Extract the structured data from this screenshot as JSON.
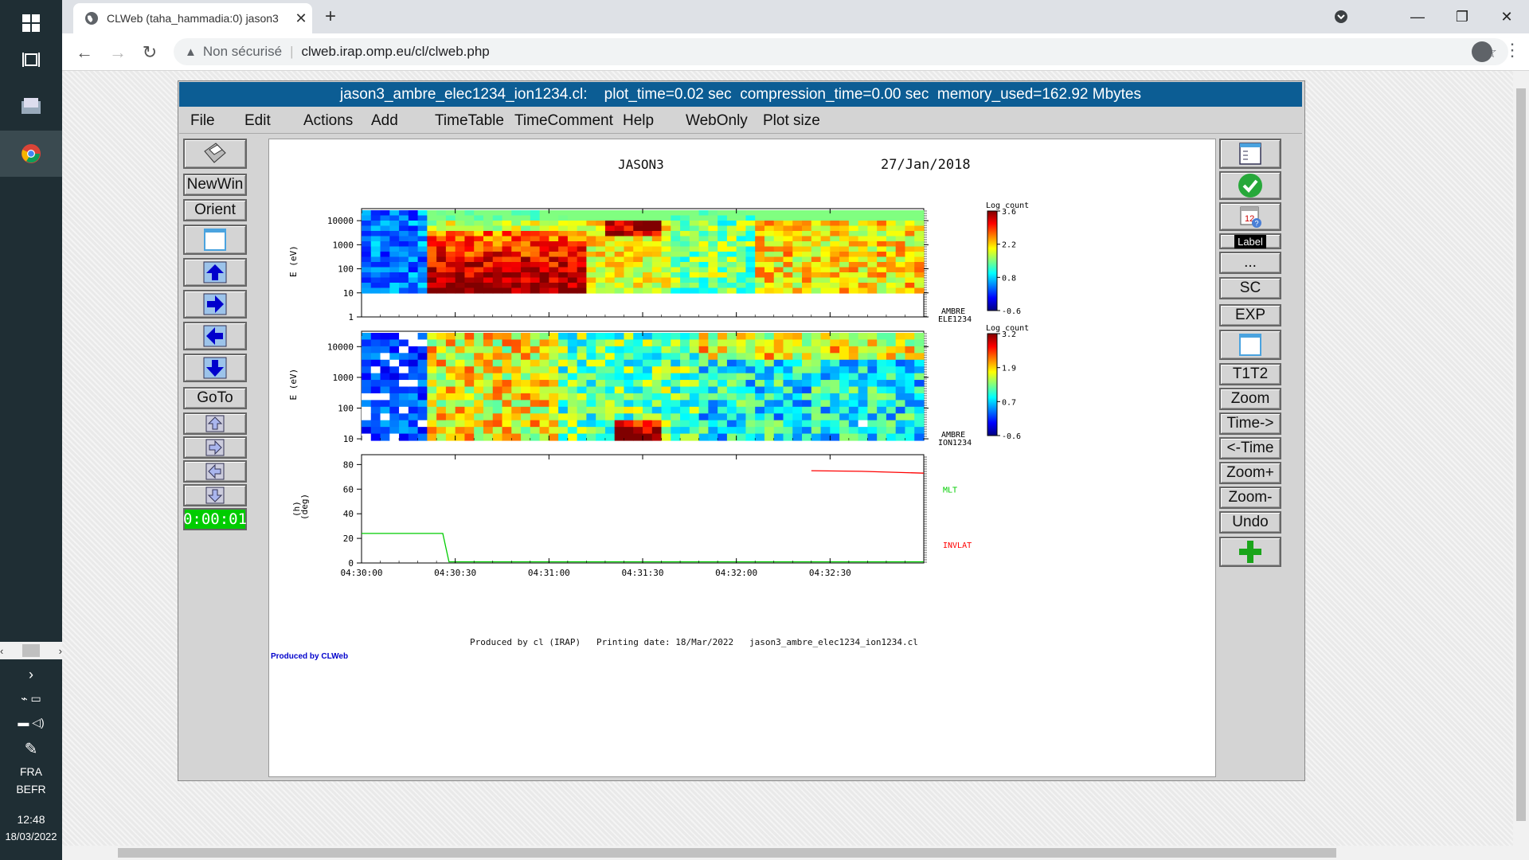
{
  "taskbar": {
    "lang1": "FRA",
    "lang2": "BEFR",
    "time": "12:48",
    "date": "18/03/2022"
  },
  "browser": {
    "tab_title": "CLWeb (taha_hammadia:0) jason3",
    "insecure_label": "Non sécurisé",
    "url": "clweb.irap.omp.eu/cl/clweb.php"
  },
  "app": {
    "title": "jason3_ambre_elec1234_ion1234.cl:    plot_time=0.02 sec  compression_time=0.00 sec  memory_used=162.92 Mbytes",
    "menu": [
      "File",
      "Edit",
      "Actions",
      "Add",
      "TimeTable",
      "TimeComment",
      "Help",
      "WebOnly",
      "Plot size"
    ],
    "left_buttons": {
      "newwin": "NewWin",
      "orient": "Orient",
      "goto": "GoTo",
      "timer": "0:00:01"
    },
    "right_buttons": {
      "label": "Label",
      "dots": "...",
      "sc": "SC",
      "exp": "EXP",
      "t1t2": "T1T2",
      "zoom": "Zoom",
      "time_fwd": "Time->",
      "time_back": "<-Time",
      "zoom_plus": "Zoom+",
      "zoom_minus": "Zoom-",
      "undo": "Undo"
    }
  },
  "plot": {
    "mission": "JASON3",
    "date": "27/Jan/2018",
    "footer": "Produced by cl (IRAP)   Printing date: 18/Mar/2022   jason3_ambre_elec1234_ion1234.cl",
    "produced_by": "Produced by CLWeb",
    "panel1": {
      "ylabel": "E (eV)",
      "yticks": [
        "10000",
        "1000",
        "100",
        "10",
        "1"
      ],
      "name1": "AMBRE",
      "name2": "ELE1234",
      "cb_title": "Log count",
      "cb_ticks": [
        "3.6",
        "2.2",
        "0.8",
        "-0.6"
      ]
    },
    "panel2": {
      "ylabel": "E (eV)",
      "yticks": [
        "10000",
        "1000",
        "100",
        "10"
      ],
      "name1": "AMBRE",
      "name2": "ION1234",
      "cb_title": "Log count",
      "cb_ticks": [
        "3.2",
        "1.9",
        "0.7",
        "-0.6"
      ]
    },
    "panel3": {
      "ylabel1": "(h)",
      "ylabel2": "(deg)",
      "yticks": [
        "80",
        "60",
        "40",
        "20",
        "0"
      ],
      "series1_label": "MLT",
      "series2_label": "INVLAT",
      "series1_color": "#00cc00",
      "series2_color": "#ff0000"
    },
    "xticks": [
      "04:30:00",
      "04:30:30",
      "04:31:00",
      "04:31:30",
      "04:32:00",
      "04:32:30"
    ]
  },
  "chart_data": [
    {
      "type": "heatmap",
      "ylabel": "E (eV)",
      "ylim": [
        1,
        30000
      ],
      "yscale": "log",
      "x_range": [
        "04:30:00",
        "04:33:00"
      ],
      "colorbar_label": "Log count",
      "colorbar_range": [
        -0.6,
        3.6
      ]
    },
    {
      "type": "heatmap",
      "ylabel": "E (eV)",
      "ylim": [
        10,
        30000
      ],
      "yscale": "log",
      "x_range": [
        "04:30:00",
        "04:33:00"
      ],
      "colorbar_label": "Log count",
      "colorbar_range": [
        -0.6,
        3.2
      ]
    },
    {
      "type": "line",
      "ylim": [
        0,
        80
      ],
      "x_range": [
        "04:30:00",
        "04:33:00"
      ],
      "series": [
        {
          "name": "MLT",
          "color": "#00cc00",
          "x": [
            "04:30:00",
            "04:30:26",
            "04:30:28",
            "04:33:00"
          ],
          "values": [
            24,
            24,
            1,
            1
          ]
        },
        {
          "name": "INVLAT",
          "color": "#ff0000",
          "x": [
            "04:32:24",
            "04:32:40",
            "04:33:00"
          ],
          "values": [
            75,
            74.5,
            73
          ]
        }
      ]
    }
  ]
}
